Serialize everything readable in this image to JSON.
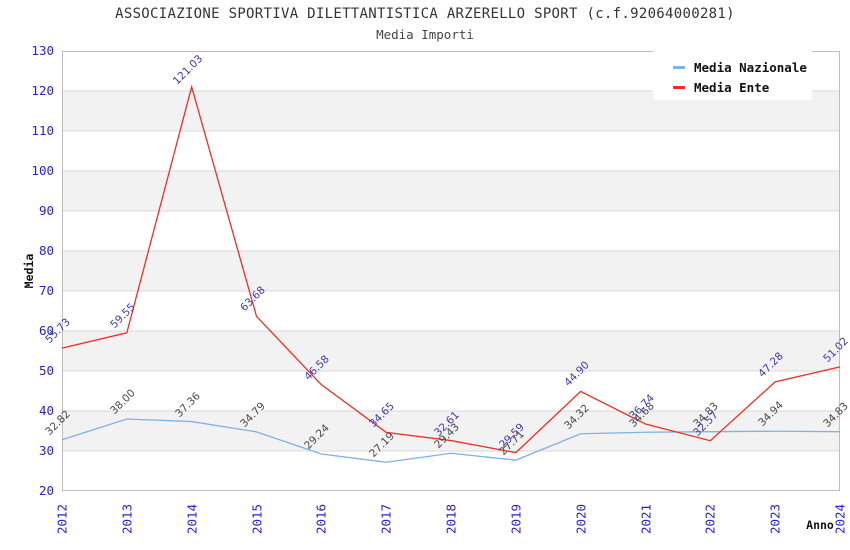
{
  "header": {
    "title": "ASSOCIAZIONE SPORTIVA DILETTANTISTICA ARZERELLO SPORT (c.f.92064000281)",
    "subtitle": "Media Importi"
  },
  "chart_data": {
    "type": "line",
    "title": "ASSOCIAZIONE SPORTIVA DILETTANTISTICA ARZERELLO SPORT (c.f.92064000281)",
    "subtitle": "Media Importi",
    "xlabel": "Anno",
    "ylabel": "Media",
    "ylim": [
      20,
      130
    ],
    "ytick_step": 10,
    "yticks": [
      20,
      30,
      40,
      50,
      60,
      70,
      80,
      90,
      100,
      110,
      120,
      130
    ],
    "categories": [
      "2012",
      "2013",
      "2014",
      "2015",
      "2016",
      "2017",
      "2018",
      "2019",
      "2020",
      "2021",
      "2022",
      "2023",
      "2024"
    ],
    "series": [
      {
        "id": "media-nazionale",
        "name": "Media Nazionale",
        "color": "#7fb2e5",
        "label_color": "#474747",
        "values": [
          32.82,
          38.0,
          37.36,
          34.79,
          29.24,
          27.19,
          29.43,
          27.71,
          34.32,
          34.68,
          34.83,
          34.94,
          34.83
        ]
      },
      {
        "id": "media-ente",
        "name": "Media Ente",
        "color": "#ee2e24",
        "label_color": "#3a3aa8",
        "values": [
          55.73,
          59.55,
          121.03,
          63.68,
          46.58,
          34.65,
          32.61,
          29.59,
          44.9,
          36.74,
          32.57,
          47.28,
          51.02
        ]
      }
    ],
    "legend": {
      "position": "top-right"
    },
    "grid": true,
    "colors": {
      "band": "#f2f2f2",
      "grid": "#dadada",
      "border": "#bdbdbd",
      "axis_text": "#2323cf"
    }
  }
}
